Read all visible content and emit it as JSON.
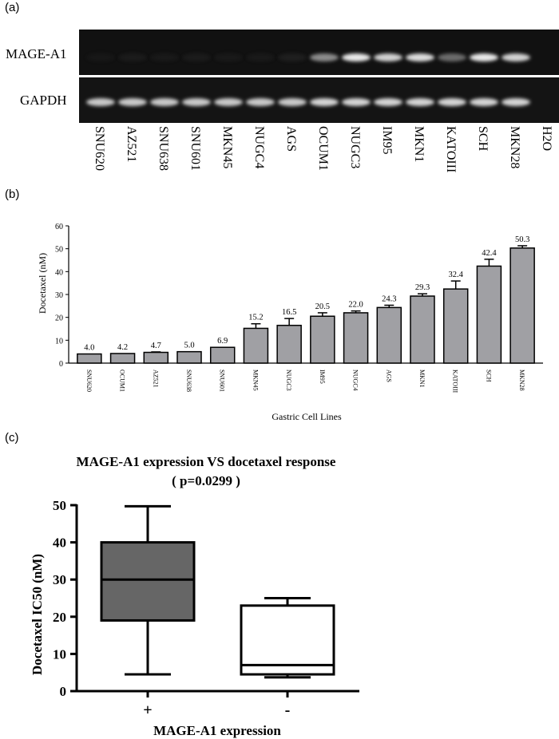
{
  "panels": {
    "a": "(a)",
    "b": "(b)",
    "c": "(c)"
  },
  "gel": {
    "rows": [
      "MAGE-A1",
      "GAPDH"
    ],
    "lanes": [
      "SNU620",
      "AZ521",
      "SNU638",
      "SNU601",
      "MKN45",
      "NUGC4",
      "AGS",
      "OCUM1",
      "NUGC3",
      "IM95",
      "MKN1",
      "KATOIII",
      "SCH",
      "MKN28",
      "H2O"
    ],
    "mage_band_intensity": [
      0.02,
      0.05,
      0.03,
      0.05,
      0.04,
      0.04,
      0.08,
      0.55,
      0.9,
      0.8,
      0.85,
      0.45,
      0.9,
      0.8,
      0.0
    ],
    "gapdh_band_intensity": [
      0.75,
      0.75,
      0.75,
      0.75,
      0.75,
      0.75,
      0.75,
      0.8,
      0.8,
      0.8,
      0.8,
      0.8,
      0.8,
      0.8,
      0.0
    ]
  },
  "chart_data": [
    {
      "type": "bar",
      "categories": [
        "SNU620",
        "OCUM1",
        "AZ521",
        "SNU638",
        "SNU601",
        "MKN45",
        "NUGC3",
        "IM95",
        "NUGC4",
        "AGS",
        "MKN1",
        "KATOIII",
        "SCH",
        "MKN28"
      ],
      "values": [
        4.0,
        4.2,
        4.7,
        5.0,
        6.9,
        15.2,
        16.5,
        20.5,
        22.0,
        24.3,
        29.3,
        32.4,
        42.4,
        50.3
      ],
      "value_labels": [
        "4.0",
        "4.2",
        "4.7",
        "5.0",
        "6.9",
        "15.2",
        "16.5",
        "20.5",
        "22.0",
        "24.3",
        "29.3",
        "32.4",
        "42.4",
        "50.3"
      ],
      "errors": [
        0,
        0,
        0.2,
        0,
        0,
        2.0,
        3.0,
        1.5,
        0.8,
        1.0,
        1.0,
        3.5,
        3.0,
        1.0
      ],
      "xlabel": "Gastric Cell Lines",
      "ylabel": "Docetaxel (nM)",
      "ylim": [
        0,
        60
      ],
      "yticks": [
        "0",
        "10",
        "20",
        "30",
        "40",
        "50",
        "60"
      ],
      "bar_color": "#a0a0a4"
    },
    {
      "type": "box",
      "title": "MAGE-A1 expression VS docetaxel response",
      "subtitle": "( p=0.0299 )",
      "xlabel": "MAGE-A1 expression",
      "ylabel": "Docetaxel IC50 (nM)",
      "ylim": [
        0,
        50
      ],
      "yticks": [
        "0",
        "10",
        "20",
        "30",
        "40",
        "50"
      ],
      "categories": [
        "+",
        "-"
      ],
      "boxes": [
        {
          "min": 4.5,
          "q1": 19,
          "median": 30,
          "q3": 40,
          "max": 49.7,
          "fill": "#666666"
        },
        {
          "min": 3.7,
          "q1": 4.5,
          "median": 7,
          "q3": 23,
          "max": 25,
          "fill": "#ffffff"
        }
      ]
    }
  ]
}
